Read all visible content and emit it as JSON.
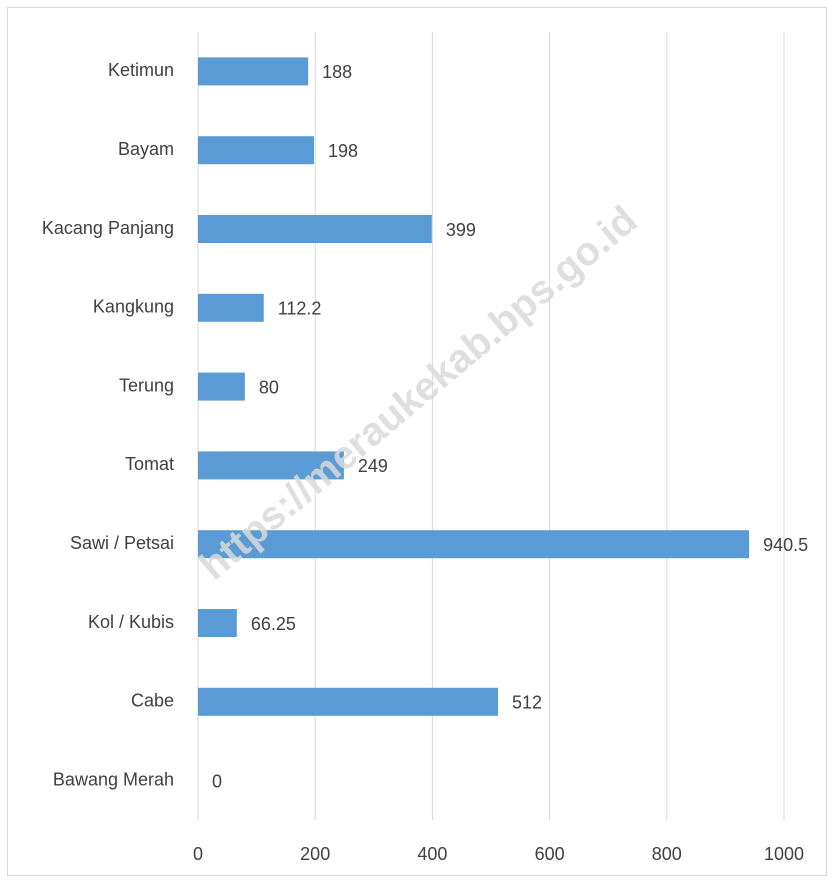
{
  "chart_data": {
    "type": "barh",
    "categories": [
      "Ketimun",
      "Bayam",
      "Kacang Panjang",
      "Kangkung",
      "Terung",
      "Tomat",
      "Sawi / Petsai",
      "Kol / Kubis",
      "Cabe",
      "Bawang Merah"
    ],
    "values": [
      188,
      198,
      399,
      112.2,
      80,
      249,
      940.5,
      66.25,
      512,
      0
    ],
    "color": "#5b9bd5",
    "xlim": [
      0,
      1000
    ],
    "xticks": [
      0,
      200,
      400,
      600,
      800,
      1000
    ],
    "grid": true,
    "watermark": "https://meraukekab.bps.go.id"
  }
}
